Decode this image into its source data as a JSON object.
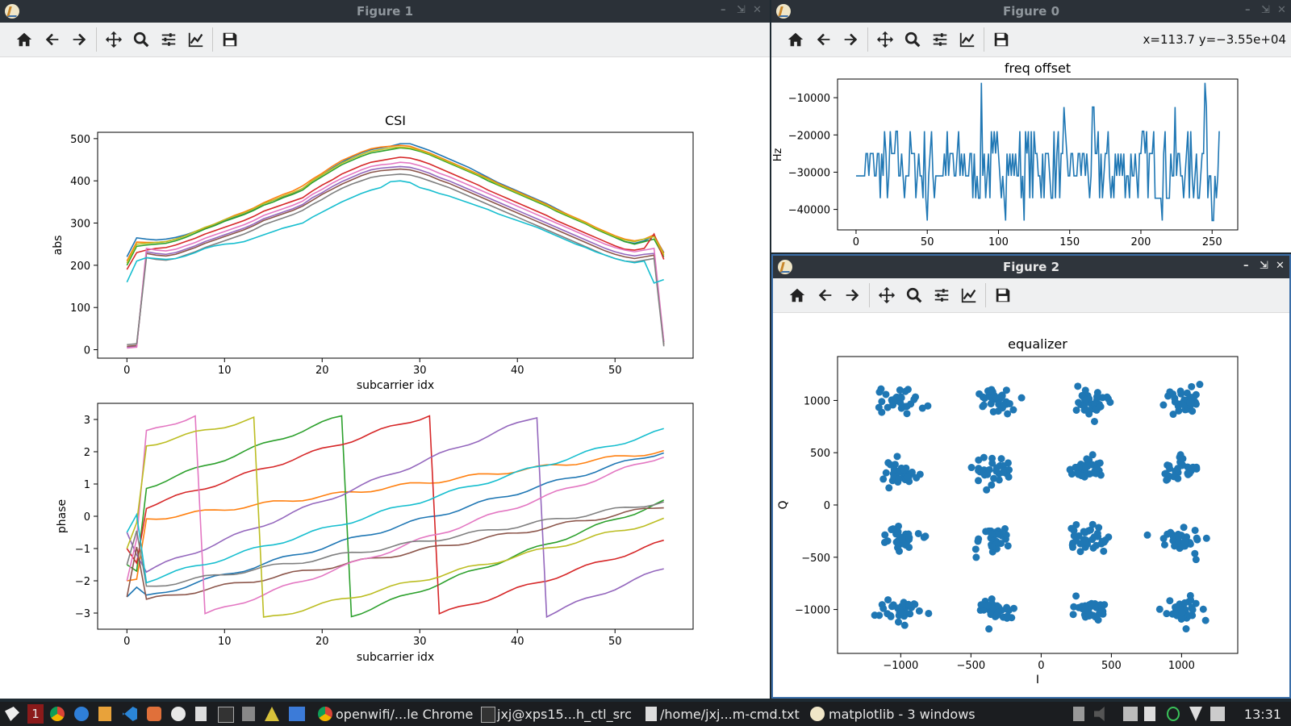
{
  "windows": {
    "fig1": {
      "title": "Figure 1",
      "csi_title": "CSI",
      "abs_ylabel": "abs",
      "phase_ylabel": "phase",
      "xlabel": "subcarrier idx"
    },
    "fig0": {
      "title": "Figure 0",
      "coord_readout": "x=113.7 y=−3.55e+04",
      "plot_title": "freq offset",
      "ylabel": "Hz"
    },
    "fig2": {
      "title": "Figure 2",
      "plot_title": "equalizer",
      "xlabel": "I",
      "ylabel": "Q"
    },
    "toolbar_icons": [
      "home-icon",
      "back-arrow-icon",
      "forward-arrow-icon",
      "pan-icon",
      "zoom-icon",
      "configure-subplots-icon",
      "edit-axes-icon",
      "save-icon"
    ],
    "window_controls": [
      "minimize-icon",
      "maximize-icon",
      "close-icon"
    ]
  },
  "chart_data": [
    {
      "type": "line",
      "title": "CSI",
      "xlabel": "subcarrier idx",
      "ylabel": "abs",
      "xlim": [
        -3,
        58
      ],
      "ylim": [
        -20,
        515
      ],
      "xticks": [
        0,
        10,
        20,
        30,
        40,
        50
      ],
      "yticks": [
        0,
        100,
        200,
        300,
        400,
        500
      ],
      "x": [
        0,
        1,
        2,
        3,
        4,
        5,
        6,
        7,
        8,
        9,
        10,
        11,
        12,
        13,
        14,
        15,
        16,
        17,
        18,
        19,
        20,
        21,
        22,
        23,
        24,
        25,
        26,
        27,
        28,
        29,
        30,
        31,
        32,
        33,
        34,
        35,
        36,
        37,
        38,
        39,
        40,
        41,
        42,
        43,
        44,
        45,
        46,
        47,
        48,
        49,
        50,
        51,
        52,
        53,
        54,
        55
      ],
      "series": [
        {
          "values": [
            220,
            265,
            262,
            260,
            262,
            266,
            272,
            280,
            288,
            296,
            306,
            314,
            322,
            332,
            346,
            354,
            362,
            370,
            382,
            400,
            414,
            430,
            444,
            456,
            466,
            474,
            478,
            482,
            488,
            488,
            480,
            472,
            462,
            452,
            442,
            432,
            420,
            408,
            396,
            386,
            376,
            366,
            356,
            346,
            334,
            322,
            310,
            300,
            288,
            276,
            266,
            256,
            252,
            258,
            270,
            230
          ]
        },
        {
          "values": [
            210,
            255,
            254,
            254,
            256,
            262,
            270,
            280,
            288,
            298,
            308,
            318,
            326,
            336,
            348,
            358,
            368,
            376,
            388,
            404,
            418,
            434,
            448,
            458,
            468,
            476,
            480,
            482,
            484,
            482,
            474,
            466,
            456,
            446,
            436,
            426,
            416,
            406,
            394,
            384,
            374,
            364,
            354,
            344,
            332,
            322,
            312,
            302,
            290,
            280,
            270,
            262,
            258,
            262,
            272,
            228
          ]
        },
        {
          "values": [
            200,
            245,
            248,
            250,
            252,
            258,
            266,
            276,
            286,
            294,
            304,
            312,
            320,
            330,
            342,
            350,
            360,
            368,
            378,
            396,
            410,
            424,
            438,
            448,
            458,
            466,
            470,
            474,
            478,
            476,
            470,
            462,
            452,
            442,
            432,
            422,
            412,
            400,
            390,
            380,
            370,
            360,
            350,
            340,
            328,
            318,
            308,
            298,
            286,
            276,
            266,
            256,
            250,
            256,
            262,
            220
          ]
        },
        {
          "values": [
            190,
            230,
            236,
            240,
            242,
            248,
            256,
            264,
            274,
            282,
            290,
            298,
            306,
            316,
            328,
            336,
            344,
            352,
            360,
            376,
            390,
            402,
            416,
            426,
            436,
            444,
            448,
            452,
            456,
            454,
            448,
            440,
            430,
            420,
            410,
            400,
            390,
            378,
            368,
            358,
            348,
            338,
            328,
            318,
            306,
            296,
            286,
            276,
            266,
            256,
            246,
            238,
            236,
            240,
            274,
            214
          ]
        },
        {
          "values": [
            6,
            8,
            232,
            228,
            226,
            230,
            238,
            246,
            256,
            264,
            272,
            280,
            288,
            298,
            310,
            318,
            326,
            334,
            344,
            360,
            372,
            386,
            398,
            408,
            418,
            426,
            430,
            432,
            434,
            432,
            426,
            418,
            408,
            400,
            390,
            380,
            370,
            360,
            350,
            340,
            330,
            320,
            310,
            300,
            290,
            280,
            270,
            260,
            250,
            240,
            232,
            226,
            222,
            226,
            228,
            18
          ]
        },
        {
          "values": [
            8,
            10,
            228,
            224,
            222,
            226,
            234,
            242,
            252,
            260,
            268,
            276,
            284,
            294,
            306,
            314,
            322,
            330,
            340,
            354,
            368,
            380,
            392,
            402,
            412,
            420,
            424,
            426,
            428,
            426,
            420,
            412,
            402,
            394,
            384,
            374,
            364,
            354,
            344,
            334,
            324,
            314,
            304,
            294,
            284,
            274,
            264,
            254,
            244,
            234,
            226,
            220,
            216,
            220,
            224,
            12
          ]
        },
        {
          "values": [
            4,
            6,
            240,
            236,
            234,
            238,
            246,
            254,
            264,
            272,
            280,
            288,
            296,
            306,
            318,
            326,
            334,
            342,
            352,
            368,
            380,
            394,
            406,
            416,
            426,
            434,
            438,
            440,
            444,
            442,
            436,
            428,
            418,
            410,
            400,
            390,
            380,
            370,
            360,
            350,
            340,
            330,
            320,
            310,
            300,
            290,
            280,
            270,
            260,
            250,
            242,
            236,
            232,
            236,
            240,
            20
          ]
        },
        {
          "values": [
            12,
            14,
            218,
            214,
            212,
            216,
            224,
            232,
            242,
            250,
            258,
            266,
            274,
            284,
            296,
            304,
            312,
            320,
            330,
            344,
            356,
            370,
            382,
            392,
            400,
            408,
            412,
            414,
            416,
            414,
            408,
            400,
            392,
            384,
            374,
            364,
            354,
            344,
            334,
            324,
            314,
            304,
            294,
            284,
            274,
            264,
            254,
            244,
            234,
            224,
            216,
            210,
            208,
            212,
            216,
            8
          ]
        },
        {
          "values": [
            205,
            250,
            252,
            254,
            256,
            262,
            270,
            280,
            290,
            298,
            308,
            316,
            324,
            334,
            346,
            354,
            364,
            372,
            382,
            400,
            414,
            428,
            442,
            452,
            462,
            470,
            474,
            478,
            480,
            478,
            472,
            464,
            454,
            444,
            434,
            424,
            414,
            404,
            392,
            382,
            372,
            362,
            352,
            342,
            330,
            320,
            310,
            300,
            288,
            278,
            268,
            260,
            256,
            262,
            268,
            224
          ]
        },
        {
          "values": [
            160,
            210,
            218,
            216,
            214,
            216,
            222,
            230,
            240,
            246,
            250,
            252,
            256,
            264,
            272,
            280,
            288,
            294,
            300,
            314,
            326,
            338,
            350,
            360,
            370,
            378,
            384,
            398,
            400,
            396,
            384,
            378,
            370,
            364,
            356,
            348,
            340,
            332,
            322,
            314,
            306,
            298,
            290,
            280,
            270,
            260,
            250,
            242,
            232,
            224,
            216,
            210,
            206,
            210,
            158,
            166
          ]
        }
      ]
    },
    {
      "type": "line",
      "xlabel": "subcarrier idx",
      "ylabel": "phase",
      "xlim": [
        -3,
        58
      ],
      "ylim": [
        -3.5,
        3.5
      ],
      "xticks": [
        0,
        10,
        20,
        30,
        40,
        50
      ],
      "yticks": [
        -3,
        -2,
        -1,
        0,
        1,
        2,
        3
      ]
    },
    {
      "type": "line",
      "title": "freq offset",
      "ylabel": "Hz",
      "xlim": [
        -13,
        268
      ],
      "ylim": [
        -45500,
        -5000
      ],
      "xticks": [
        0,
        50,
        100,
        150,
        200,
        250
      ],
      "yticks": [
        -40000,
        -30000,
        -20000,
        -10000
      ],
      "y_levels": [
        -43000,
        -37000,
        -31000,
        -25000,
        -19000,
        -12500,
        -6000
      ],
      "n_points": 256
    },
    {
      "type": "scatter",
      "title": "equalizer",
      "xlabel": "I",
      "ylabel": "Q",
      "xlim": [
        -1450,
        1400
      ],
      "ylim": [
        -1420,
        1420
      ],
      "xticks": [
        -1000,
        -500,
        0,
        500,
        1000
      ],
      "yticks": [
        -1000,
        -500,
        0,
        500,
        1000
      ],
      "constellation_levels": [
        -1000,
        -330,
        330,
        1000
      ]
    }
  ],
  "taskbar": {
    "workspace": "1",
    "tasks": [
      "openwifi/...le Chrome",
      "jxj@xps15...h_ctl_src",
      "/home/jxj...m-cmd.txt",
      "matplotlib - 3 windows"
    ],
    "clock": "13:31"
  }
}
